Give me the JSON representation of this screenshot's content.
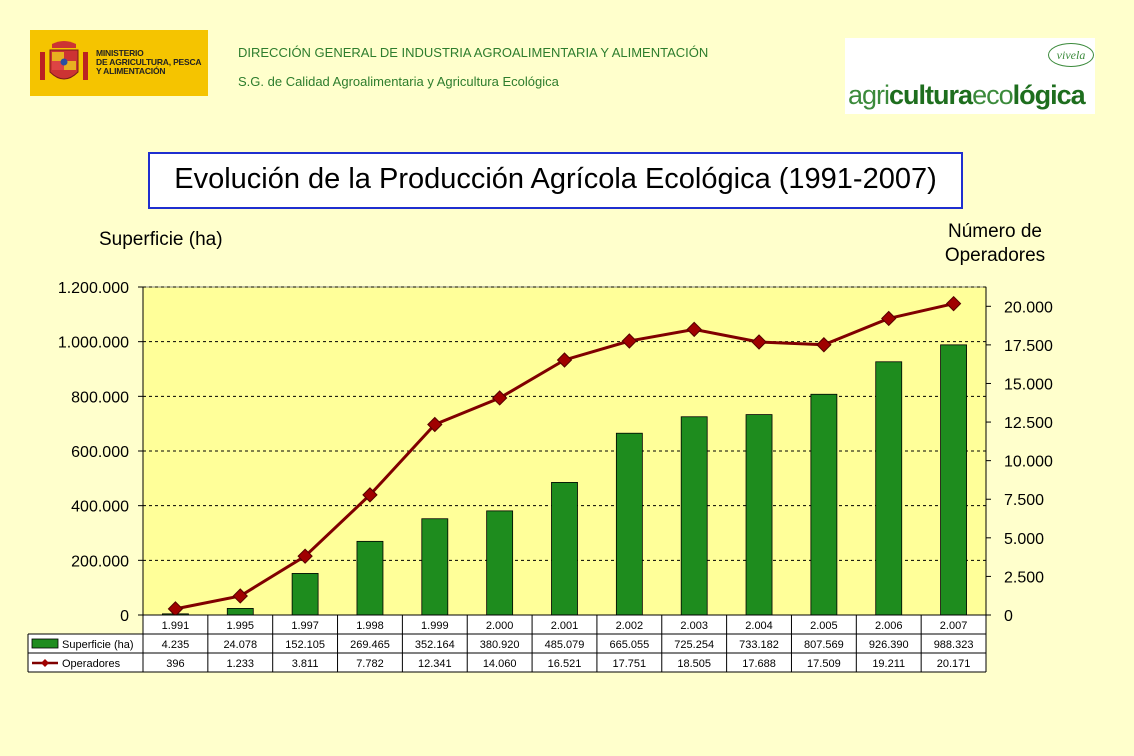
{
  "header": {
    "ministerio_lines": [
      "MINISTERIO",
      "DE AGRICULTURA, PESCA",
      "Y ALIMENTACIÓN"
    ],
    "line1": "DIRECCIÓN GENERAL DE INDUSTRIA AGROALIMENTARIA Y ALIMENTACIÓN",
    "line2": "S.G. de Calidad Agroalimentaria y Agricultura Ecológica",
    "logo_tag": "vivela",
    "logo_word_a": "agri",
    "logo_word_b": "cultura",
    "logo_word_c": "eco",
    "logo_word_d": "lógica"
  },
  "chart_data": {
    "type": "bar",
    "title": "Evolución de la Producción Agrícola Ecológica (1991-2007)",
    "ylabel": "Superficie (ha)",
    "y2label": [
      "Número de",
      "Operadores"
    ],
    "categories": [
      "1.991",
      "1.995",
      "1.997",
      "1.998",
      "1.999",
      "2.000",
      "2.001",
      "2.002",
      "2.003",
      "2.004",
      "2.005",
      "2.006",
      "2.007"
    ],
    "ylim": [
      0,
      1200000
    ],
    "y_ticks": [
      "0",
      "200.000",
      "400.000",
      "600.000",
      "800.000",
      "1.000.000",
      "1.200.000"
    ],
    "y2lim": [
      0,
      21250
    ],
    "y2_ticks": [
      "0",
      "2.500",
      "5.000",
      "7.500",
      "10.000",
      "12.500",
      "15.000",
      "17.500",
      "20.000"
    ],
    "grid": true,
    "colors": {
      "bar": "#1E8C1E",
      "line": "#800000",
      "marker": "#A00000",
      "plot_bg": "#FFFF99"
    },
    "series": [
      {
        "name": "Superficie (ha)",
        "type": "bar",
        "axis": "left",
        "values": [
          4235,
          24078,
          152105,
          269465,
          352164,
          380920,
          485079,
          665055,
          725254,
          733182,
          807569,
          926390,
          988323
        ],
        "labels": [
          "4.235",
          "24.078",
          "152.105",
          "269.465",
          "352.164",
          "380.920",
          "485.079",
          "665.055",
          "725.254",
          "733.182",
          "807.569",
          "926.390",
          "988.323"
        ]
      },
      {
        "name": "Operadores",
        "type": "line",
        "axis": "right",
        "values": [
          396,
          1233,
          3811,
          7782,
          12341,
          14060,
          16521,
          17751,
          18505,
          17688,
          17509,
          19211,
          20171
        ],
        "labels": [
          "396",
          "1.233",
          "3.811",
          "7.782",
          "12.341",
          "14.060",
          "16.521",
          "17.751",
          "18.505",
          "17.688",
          "17.509",
          "19.211",
          "20.171"
        ]
      }
    ]
  }
}
